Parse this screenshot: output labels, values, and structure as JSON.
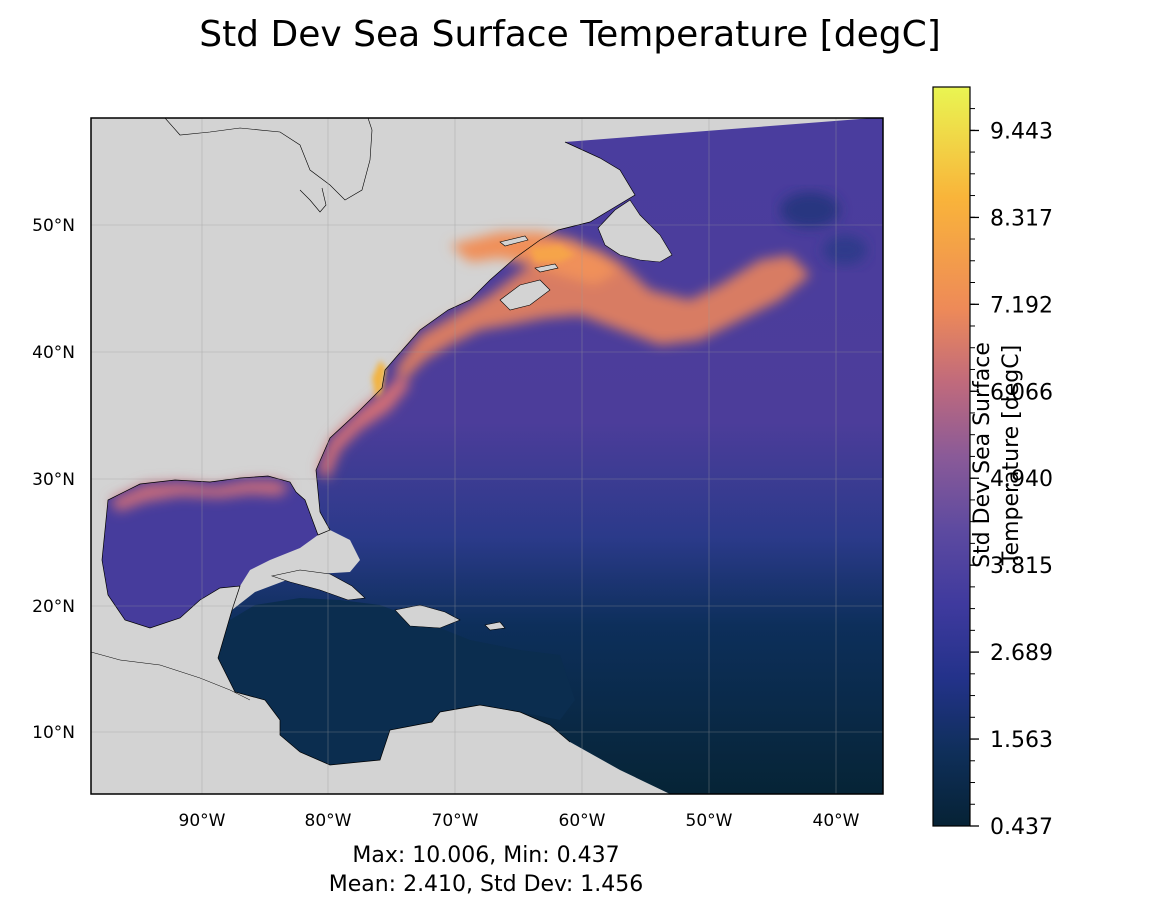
{
  "title": "Std Dev Sea Surface Temperature [degC]",
  "chart_data": {
    "type": "heatmap",
    "title": "Std Dev Sea Surface Temperature [degC]",
    "map_extent": {
      "lon_min": -99,
      "lon_max": -36,
      "lat_min": 5,
      "lat_max": 58
    },
    "x_ticks": [
      {
        "value": -90,
        "label": "90°W"
      },
      {
        "value": -80,
        "label": "80°W"
      },
      {
        "value": -70,
        "label": "70°W"
      },
      {
        "value": -60,
        "label": "60°W"
      },
      {
        "value": -50,
        "label": "50°W"
      },
      {
        "value": -40,
        "label": "40°W"
      }
    ],
    "y_ticks": [
      {
        "value": 10,
        "label": "10°N"
      },
      {
        "value": 20,
        "label": "20°N"
      },
      {
        "value": 30,
        "label": "30°N"
      },
      {
        "value": 40,
        "label": "40°N"
      },
      {
        "value": 50,
        "label": "50°N"
      }
    ],
    "colorbar": {
      "label_line1": "Std Dev Sea Surface",
      "label_line2": "Temperature [degC]",
      "min": 0.437,
      "max": 10.006,
      "ticks": [
        0.437,
        1.563,
        2.689,
        3.815,
        4.94,
        6.066,
        7.192,
        8.317,
        9.443
      ],
      "tick_labels": [
        "0.437",
        "1.563",
        "2.689",
        "3.815",
        "4.940",
        "6.066",
        "7.192",
        "8.317",
        "9.443"
      ],
      "colormap": [
        "#062235",
        "#0f2f5a",
        "#23328a",
        "#3f3a9e",
        "#5d4aa0",
        "#8a5a98",
        "#c06a7c",
        "#ee8a58",
        "#f9b43a",
        "#e9f552"
      ]
    },
    "colors": {
      "land": "#d3d3d3",
      "coast": "#000000",
      "grid": "#9a9a9a"
    },
    "stats": {
      "max": 10.006,
      "min": 0.437,
      "mean": 2.41,
      "std_dev": 1.456
    }
  },
  "stats_line1": "Max: 10.006, Min: 0.437",
  "stats_line2": "Mean: 2.410, Std Dev: 1.456"
}
